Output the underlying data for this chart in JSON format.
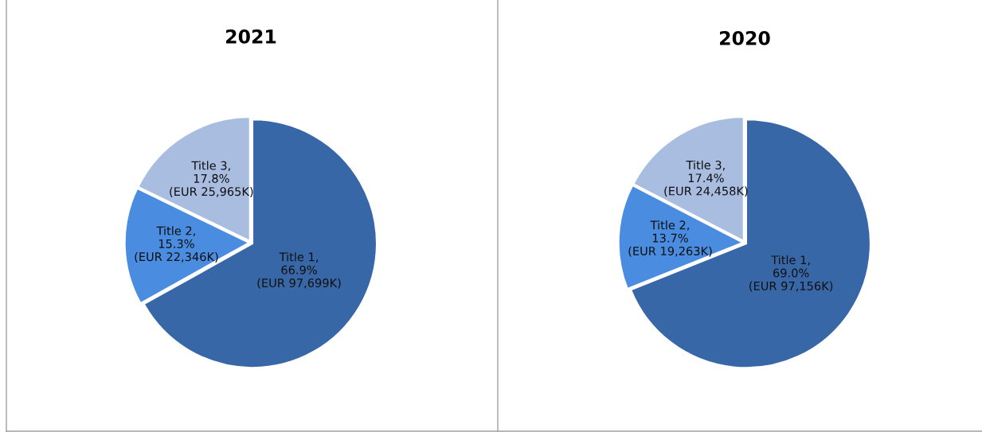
{
  "chart_data": [
    {
      "type": "pie",
      "title": "2021",
      "categories": [
        "Title 1",
        "Title 2",
        "Title 3"
      ],
      "values": [
        66.9,
        15.3,
        17.8
      ],
      "colors": [
        "#3867a8",
        "#4a8ce0",
        "#a9bde0"
      ],
      "value_labels": [
        ",\n66.9%\n(EUR 97,699K)",
        ",\n15.3%\n(EUR 22,346K)",
        ",\n17.8%\n(EUR 25,965K)"
      ]
    },
    {
      "type": "pie",
      "title": "2020",
      "categories": [
        "Title 1",
        "Title 2",
        "Title 3"
      ],
      "values": [
        69.0,
        13.7,
        17.4
      ],
      "colors": [
        "#3867a8",
        "#4a8ce0",
        "#a9bde0"
      ],
      "value_labels": [
        ",\n69.0%\n(EUR 97,156K)",
        ",\n13.7%\n(EUR 19,263K)",
        ",\n17.4%\n(EUR 24,458K)"
      ]
    }
  ]
}
